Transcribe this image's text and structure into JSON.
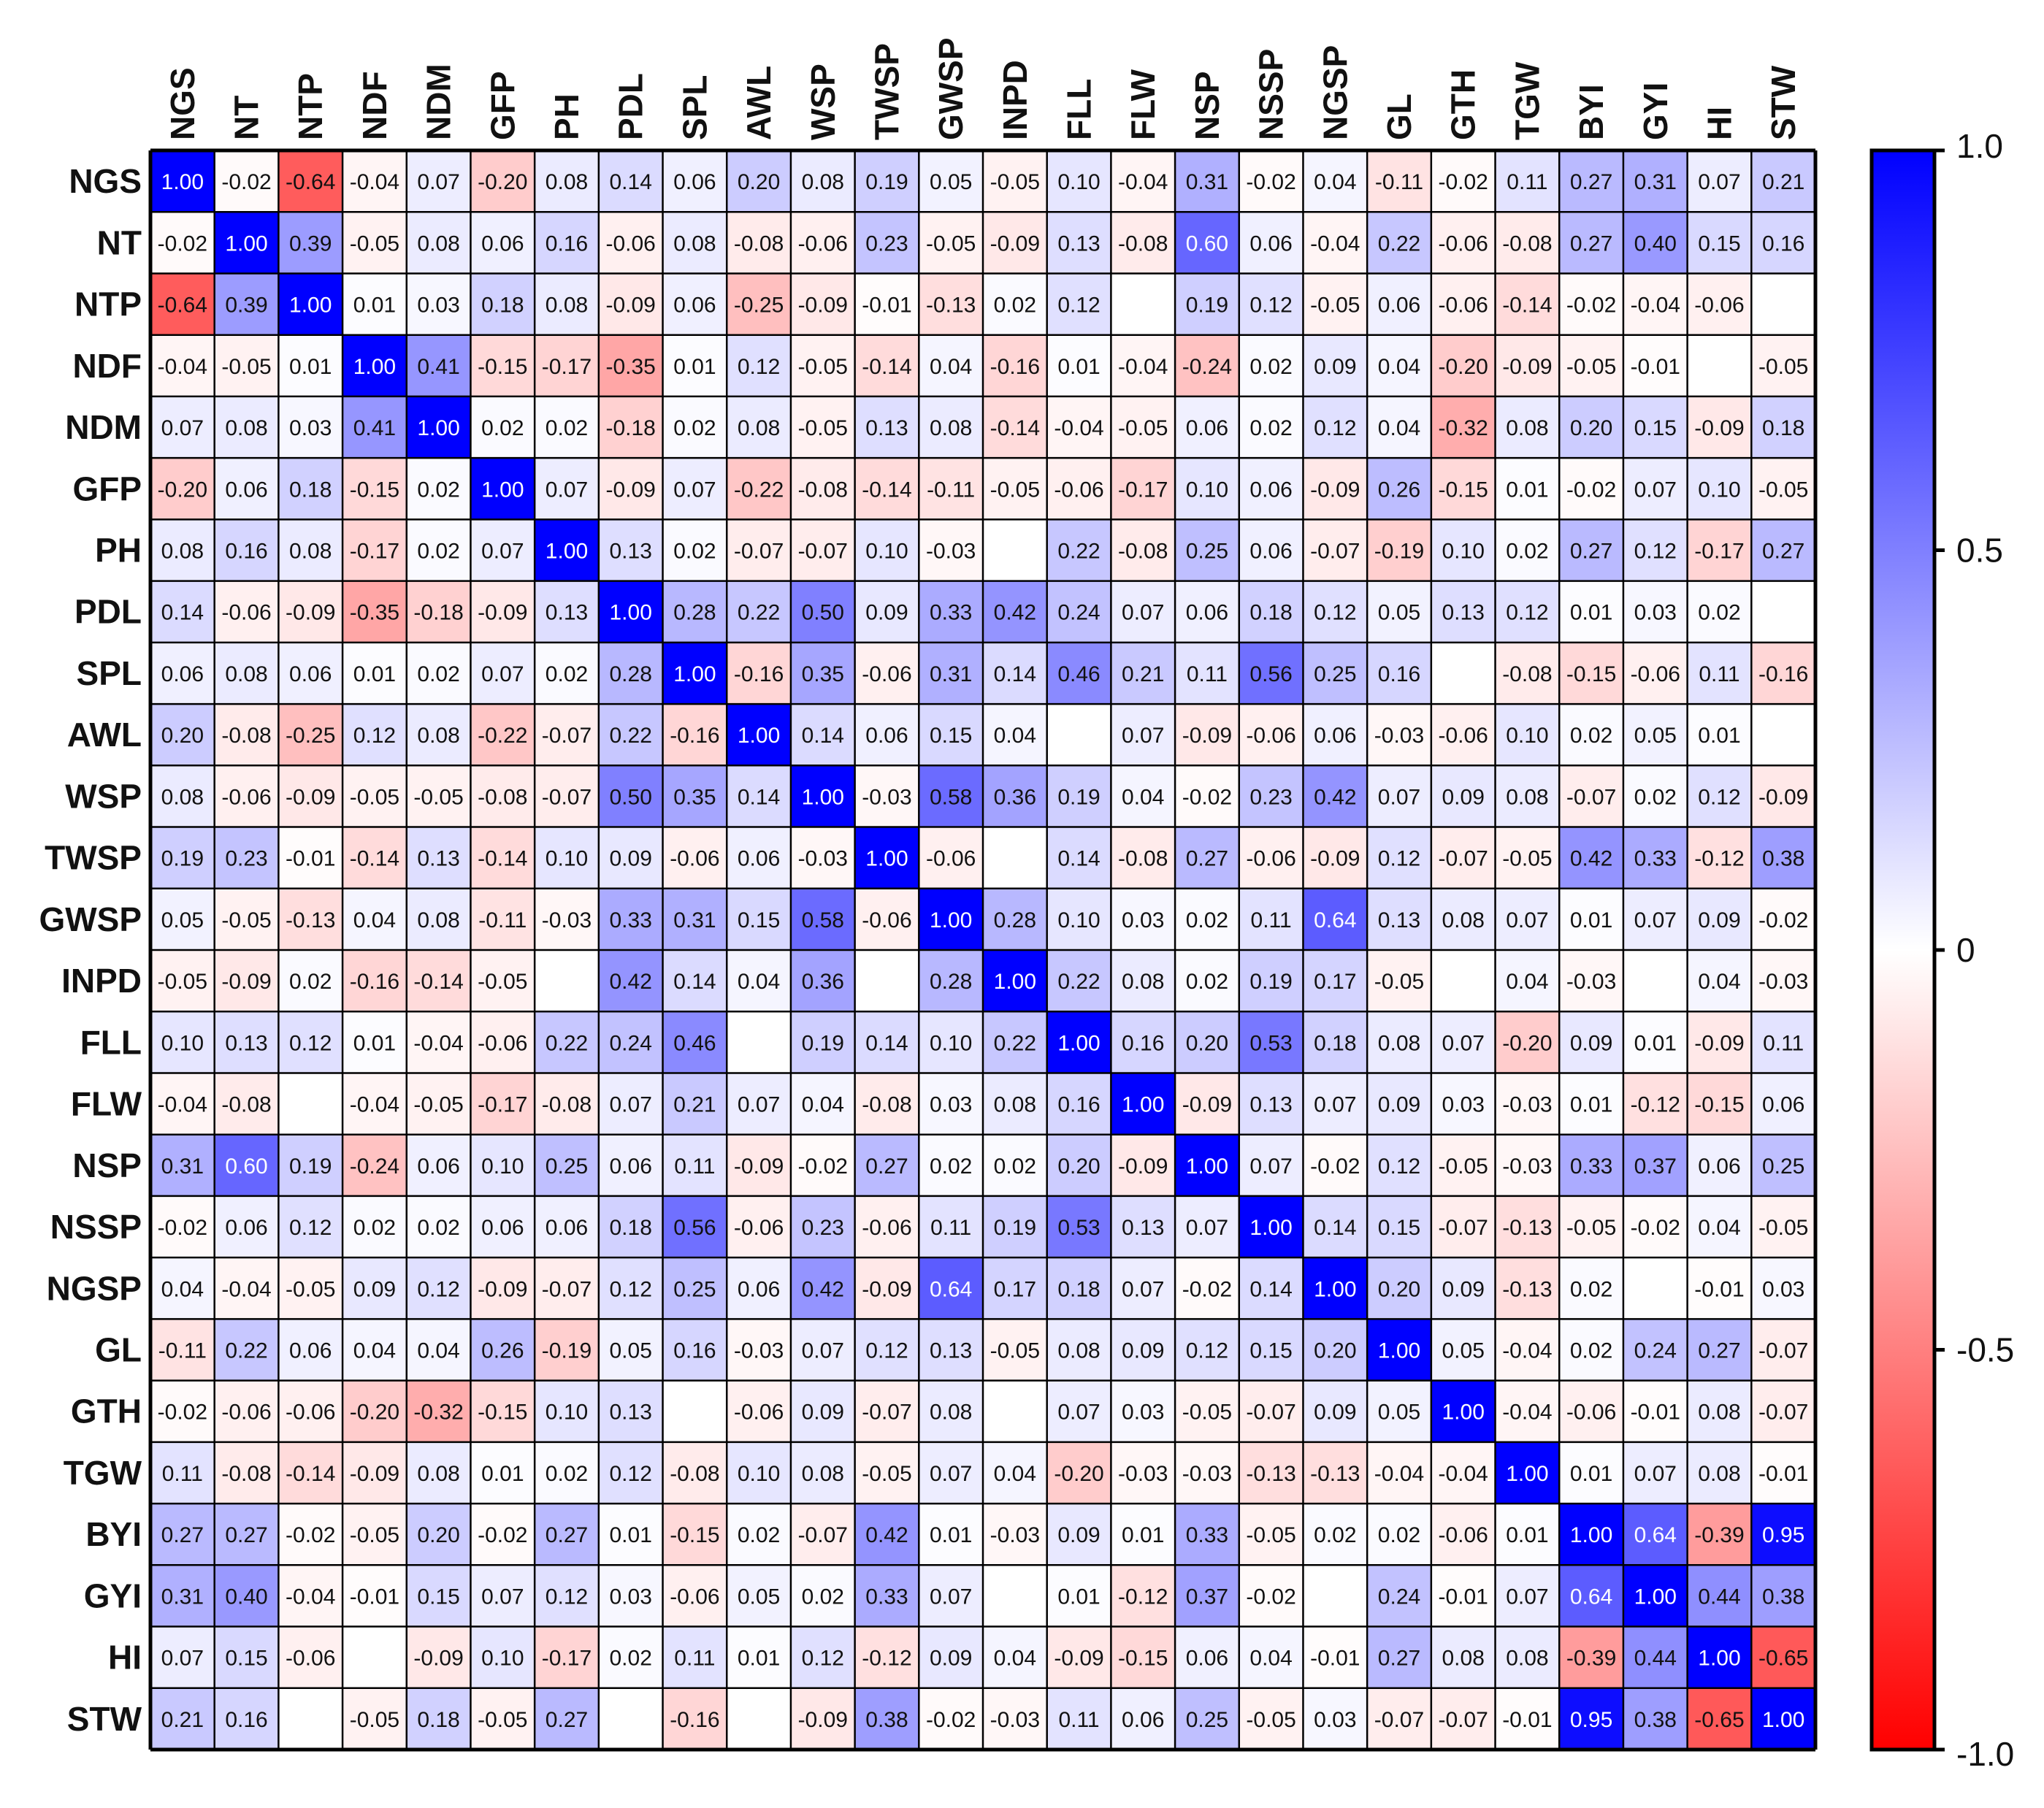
{
  "chart_data": {
    "type": "heatmap",
    "variables": [
      "NGS",
      "NT",
      "NTP",
      "NDF",
      "NDM",
      "GFP",
      "PH",
      "PDL",
      "SPL",
      "AWL",
      "WSP",
      "TWSP",
      "GWSP",
      "INPD",
      "FLL",
      "FLW",
      "NSP",
      "NSSP",
      "NGSP",
      "GL",
      "GTH",
      "TGW",
      "BYI",
      "GYI",
      "HI",
      "STW"
    ],
    "matrix": [
      [
        1.0,
        -0.02,
        -0.64,
        -0.04,
        0.07,
        -0.2,
        0.08,
        0.14,
        0.06,
        0.2,
        0.08,
        0.19,
        0.05,
        -0.05,
        0.1,
        -0.04,
        0.31,
        -0.02,
        0.04,
        -0.11,
        -0.02,
        0.11,
        0.27,
        0.31,
        0.07,
        0.21
      ],
      [
        -0.02,
        1.0,
        0.39,
        -0.05,
        0.08,
        0.06,
        0.16,
        -0.06,
        0.08,
        -0.08,
        -0.06,
        0.23,
        -0.05,
        -0.09,
        0.13,
        -0.08,
        0.6,
        0.06,
        -0.04,
        0.22,
        -0.06,
        -0.08,
        0.27,
        0.4,
        0.15,
        0.16
      ],
      [
        -0.64,
        0.39,
        1.0,
        0.01,
        0.03,
        0.18,
        0.08,
        -0.09,
        0.06,
        -0.25,
        -0.09,
        -0.01,
        -0.13,
        0.02,
        0.12,
        null,
        0.19,
        0.12,
        -0.05,
        0.06,
        -0.06,
        -0.14,
        -0.02,
        -0.04,
        -0.06,
        null
      ],
      [
        -0.04,
        -0.05,
        0.01,
        1.0,
        0.41,
        -0.15,
        -0.17,
        -0.35,
        0.01,
        0.12,
        -0.05,
        -0.14,
        0.04,
        -0.16,
        0.01,
        -0.04,
        -0.24,
        0.02,
        0.09,
        0.04,
        -0.2,
        -0.09,
        -0.05,
        -0.01,
        null,
        -0.05
      ],
      [
        0.07,
        0.08,
        0.03,
        0.41,
        1.0,
        0.02,
        0.02,
        -0.18,
        0.02,
        0.08,
        -0.05,
        0.13,
        0.08,
        -0.14,
        -0.04,
        -0.05,
        0.06,
        0.02,
        0.12,
        0.04,
        -0.32,
        0.08,
        0.2,
        0.15,
        -0.09,
        0.18
      ],
      [
        -0.2,
        0.06,
        0.18,
        -0.15,
        0.02,
        1.0,
        0.07,
        -0.09,
        0.07,
        -0.22,
        -0.08,
        -0.14,
        -0.11,
        -0.05,
        -0.06,
        -0.17,
        0.1,
        0.06,
        -0.09,
        0.26,
        -0.15,
        0.01,
        -0.02,
        0.07,
        0.1,
        -0.05
      ],
      [
        0.08,
        0.16,
        0.08,
        -0.17,
        0.02,
        0.07,
        1.0,
        0.13,
        0.02,
        -0.07,
        -0.07,
        0.1,
        -0.03,
        null,
        0.22,
        -0.08,
        0.25,
        0.06,
        -0.07,
        -0.19,
        0.1,
        0.02,
        0.27,
        0.12,
        -0.17,
        0.27
      ],
      [
        0.14,
        -0.06,
        -0.09,
        -0.35,
        -0.18,
        -0.09,
        0.13,
        1.0,
        0.28,
        0.22,
        0.5,
        0.09,
        0.33,
        0.42,
        0.24,
        0.07,
        0.06,
        0.18,
        0.12,
        0.05,
        0.13,
        0.12,
        0.01,
        0.03,
        0.02,
        null
      ],
      [
        0.06,
        0.08,
        0.06,
        0.01,
        0.02,
        0.07,
        0.02,
        0.28,
        1.0,
        -0.16,
        0.35,
        -0.06,
        0.31,
        0.14,
        0.46,
        0.21,
        0.11,
        0.56,
        0.25,
        0.16,
        null,
        -0.08,
        -0.15,
        -0.06,
        0.11,
        -0.16
      ],
      [
        0.2,
        -0.08,
        -0.25,
        0.12,
        0.08,
        -0.22,
        -0.07,
        0.22,
        -0.16,
        1.0,
        0.14,
        0.06,
        0.15,
        0.04,
        null,
        0.07,
        -0.09,
        -0.06,
        0.06,
        -0.03,
        -0.06,
        0.1,
        0.02,
        0.05,
        0.01,
        null
      ],
      [
        0.08,
        -0.06,
        -0.09,
        -0.05,
        -0.05,
        -0.08,
        -0.07,
        0.5,
        0.35,
        0.14,
        1.0,
        -0.03,
        0.58,
        0.36,
        0.19,
        0.04,
        -0.02,
        0.23,
        0.42,
        0.07,
        0.09,
        0.08,
        -0.07,
        0.02,
        0.12,
        -0.09
      ],
      [
        0.19,
        0.23,
        -0.01,
        -0.14,
        0.13,
        -0.14,
        0.1,
        0.09,
        -0.06,
        0.06,
        -0.03,
        1.0,
        -0.06,
        null,
        0.14,
        -0.08,
        0.27,
        -0.06,
        -0.09,
        0.12,
        -0.07,
        -0.05,
        0.42,
        0.33,
        -0.12,
        0.38
      ],
      [
        0.05,
        -0.05,
        -0.13,
        0.04,
        0.08,
        -0.11,
        -0.03,
        0.33,
        0.31,
        0.15,
        0.58,
        -0.06,
        1.0,
        0.28,
        0.1,
        0.03,
        0.02,
        0.11,
        0.64,
        0.13,
        0.08,
        0.07,
        0.01,
        0.07,
        0.09,
        -0.02
      ],
      [
        -0.05,
        -0.09,
        0.02,
        -0.16,
        -0.14,
        -0.05,
        null,
        0.42,
        0.14,
        0.04,
        0.36,
        null,
        0.28,
        1.0,
        0.22,
        0.08,
        0.02,
        0.19,
        0.17,
        -0.05,
        null,
        0.04,
        -0.03,
        null,
        0.04,
        -0.03
      ],
      [
        0.1,
        0.13,
        0.12,
        0.01,
        -0.04,
        -0.06,
        0.22,
        0.24,
        0.46,
        null,
        0.19,
        0.14,
        0.1,
        0.22,
        1.0,
        0.16,
        0.2,
        0.53,
        0.18,
        0.08,
        0.07,
        -0.2,
        0.09,
        0.01,
        -0.09,
        0.11
      ],
      [
        -0.04,
        -0.08,
        null,
        -0.04,
        -0.05,
        -0.17,
        -0.08,
        0.07,
        0.21,
        0.07,
        0.04,
        -0.08,
        0.03,
        0.08,
        0.16,
        1.0,
        -0.09,
        0.13,
        0.07,
        0.09,
        0.03,
        -0.03,
        0.01,
        -0.12,
        -0.15,
        0.06
      ],
      [
        0.31,
        0.6,
        0.19,
        -0.24,
        0.06,
        0.1,
        0.25,
        0.06,
        0.11,
        -0.09,
        -0.02,
        0.27,
        0.02,
        0.02,
        0.2,
        -0.09,
        1.0,
        0.07,
        -0.02,
        0.12,
        -0.05,
        -0.03,
        0.33,
        0.37,
        0.06,
        0.25
      ],
      [
        -0.02,
        0.06,
        0.12,
        0.02,
        0.02,
        0.06,
        0.06,
        0.18,
        0.56,
        -0.06,
        0.23,
        -0.06,
        0.11,
        0.19,
        0.53,
        0.13,
        0.07,
        1.0,
        0.14,
        0.15,
        -0.07,
        -0.13,
        -0.05,
        -0.02,
        0.04,
        -0.05
      ],
      [
        0.04,
        -0.04,
        -0.05,
        0.09,
        0.12,
        -0.09,
        -0.07,
        0.12,
        0.25,
        0.06,
        0.42,
        -0.09,
        0.64,
        0.17,
        0.18,
        0.07,
        -0.02,
        0.14,
        1.0,
        0.2,
        0.09,
        -0.13,
        0.02,
        null,
        -0.01,
        0.03
      ],
      [
        -0.11,
        0.22,
        0.06,
        0.04,
        0.04,
        0.26,
        -0.19,
        0.05,
        0.16,
        -0.03,
        0.07,
        0.12,
        0.13,
        -0.05,
        0.08,
        0.09,
        0.12,
        0.15,
        0.2,
        1.0,
        0.05,
        -0.04,
        0.02,
        0.24,
        0.27,
        -0.07
      ],
      [
        -0.02,
        -0.06,
        -0.06,
        -0.2,
        -0.32,
        -0.15,
        0.1,
        0.13,
        null,
        -0.06,
        0.09,
        -0.07,
        0.08,
        null,
        0.07,
        0.03,
        -0.05,
        -0.07,
        0.09,
        0.05,
        1.0,
        -0.04,
        -0.06,
        -0.01,
        0.08,
        -0.07
      ],
      [
        0.11,
        -0.08,
        -0.14,
        -0.09,
        0.08,
        0.01,
        0.02,
        0.12,
        -0.08,
        0.1,
        0.08,
        -0.05,
        0.07,
        0.04,
        -0.2,
        -0.03,
        -0.03,
        -0.13,
        -0.13,
        -0.04,
        -0.04,
        1.0,
        0.01,
        0.07,
        0.08,
        -0.01
      ],
      [
        0.27,
        0.27,
        -0.02,
        -0.05,
        0.2,
        -0.02,
        0.27,
        0.01,
        -0.15,
        0.02,
        -0.07,
        0.42,
        0.01,
        -0.03,
        0.09,
        0.01,
        0.33,
        -0.05,
        0.02,
        0.02,
        -0.06,
        0.01,
        1.0,
        0.64,
        -0.39,
        0.95
      ],
      [
        0.31,
        0.4,
        -0.04,
        -0.01,
        0.15,
        0.07,
        0.12,
        0.03,
        -0.06,
        0.05,
        0.02,
        0.33,
        0.07,
        null,
        0.01,
        -0.12,
        0.37,
        -0.02,
        null,
        0.24,
        -0.01,
        0.07,
        0.64,
        1.0,
        0.44,
        0.38
      ],
      [
        0.07,
        0.15,
        -0.06,
        null,
        -0.09,
        0.1,
        -0.17,
        0.02,
        0.11,
        0.01,
        0.12,
        -0.12,
        0.09,
        0.04,
        -0.09,
        -0.15,
        0.06,
        0.04,
        -0.01,
        0.27,
        0.08,
        0.08,
        -0.39,
        0.44,
        1.0,
        -0.65
      ],
      [
        0.21,
        0.16,
        null,
        -0.05,
        0.18,
        -0.05,
        0.27,
        null,
        -0.16,
        null,
        -0.09,
        0.38,
        -0.02,
        -0.03,
        0.11,
        0.06,
        0.25,
        -0.05,
        0.03,
        -0.07,
        -0.07,
        -0.01,
        0.95,
        0.38,
        -0.65,
        1.0
      ]
    ],
    "value_range": [
      -1.0,
      1.0
    ],
    "colorbar": {
      "ticks": [
        1.0,
        0.5,
        0,
        -0.5,
        -1.0
      ],
      "tick_labels": [
        "1.0",
        "0.5",
        "0",
        "-0.5",
        "-1.0"
      ]
    },
    "colors": {
      "positive": "#0000ff",
      "zero": "#ffffff",
      "negative": "#ff0000",
      "text_dark": "#111111",
      "text_light": "#ffffff"
    },
    "title": "",
    "xlabel": "",
    "ylabel": "",
    "grid": true
  }
}
